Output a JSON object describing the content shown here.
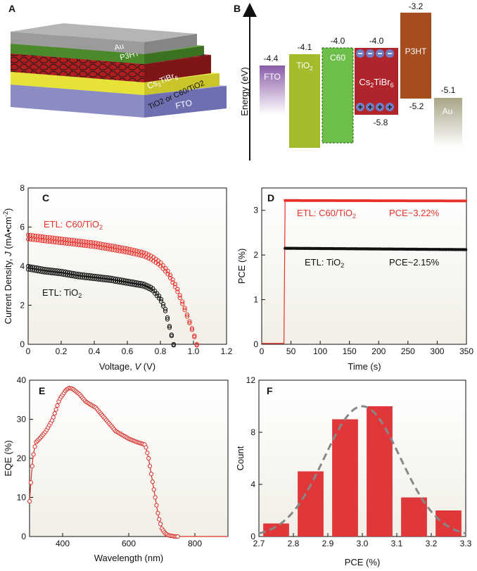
{
  "panels": {
    "A": {
      "label": "A",
      "layers": [
        "Au",
        "P3HT",
        "Cs2TiBr6",
        "TiO2 or C60/TiO2",
        "FTO"
      ]
    },
    "B": {
      "label": "B",
      "ylabel": "Energy (eV)",
      "materials": [
        "FTO",
        "TiO2",
        "C60",
        "Cs2TiBr6",
        "P3HT",
        "Au"
      ],
      "levels": {
        "FTO": "-4.4",
        "TiO2": "-4.1",
        "C60": "-4.0",
        "Cs2TiBr6_cb": "-4.0",
        "Cs2TiBr6_vb": "-5.8",
        "P3HT_lumo": "-3.2",
        "P3HT_homo": "-5.2",
        "Au": "-5.1"
      },
      "colors": {
        "FTO": "#8a5ca8",
        "TiO2": "#a4bb2b",
        "C60": "#6cbf4a",
        "Cs2TiBr6": "#b0242b",
        "P3HT": "#a64d1f",
        "Au": "#a8a486"
      }
    },
    "C": {
      "label": "C"
    },
    "D": {
      "label": "D"
    },
    "E": {
      "label": "E"
    },
    "F": {
      "label": "F"
    }
  },
  "chart_data": [
    {
      "panel": "C",
      "type": "scatter",
      "xlabel": "Voltage, V (V)",
      "ylabel": "Current Density, J (mA•cm⁻²)",
      "xlim": [
        0,
        1.2
      ],
      "ylim": [
        0,
        8
      ],
      "xticks": [
        "0",
        "0.2",
        "0.4",
        "0.6",
        "0.8",
        "1.0",
        "1.2"
      ],
      "yticks": [
        "0",
        "2",
        "4",
        "6",
        "8"
      ],
      "grid": false,
      "annotations": [
        "ETL: C60/TiO2",
        "ETL: TiO2"
      ],
      "series": [
        {
          "name": "ETL: C60/TiO2",
          "color": "#e8302a",
          "x": [
            0,
            0.1,
            0.2,
            0.3,
            0.4,
            0.5,
            0.6,
            0.7,
            0.75,
            0.8,
            0.85,
            0.9,
            0.95,
            1.0,
            1.02
          ],
          "y": [
            5.6,
            5.5,
            5.4,
            5.3,
            5.2,
            5.05,
            4.9,
            4.7,
            4.5,
            4.2,
            3.7,
            2.9,
            1.8,
            0.6,
            0
          ]
        },
        {
          "name": "ETL: TiO2",
          "color": "#111111",
          "x": [
            0,
            0.1,
            0.2,
            0.3,
            0.4,
            0.5,
            0.6,
            0.7,
            0.75,
            0.8,
            0.83,
            0.85,
            0.87,
            0.88
          ],
          "y": [
            4.0,
            3.85,
            3.75,
            3.6,
            3.5,
            3.4,
            3.25,
            3.1,
            2.9,
            2.4,
            1.8,
            1.1,
            0.4,
            0
          ]
        }
      ]
    },
    {
      "panel": "D",
      "type": "line",
      "xlabel": "Time (s)",
      "ylabel": "PCE (%)",
      "xlim": [
        0,
        350
      ],
      "ylim": [
        0,
        3.5
      ],
      "xticks": [
        "0",
        "50",
        "100",
        "150",
        "200",
        "250",
        "300",
        "350"
      ],
      "yticks": [
        "0",
        "1",
        "2",
        "3"
      ],
      "grid": false,
      "annotations": [
        "ETL: C60/TiO2",
        "PCE~3.22%",
        "ETL: TiO2",
        "PCE~2.15%"
      ],
      "series": [
        {
          "name": "ETL: C60/TiO2",
          "color": "#e8302a",
          "x": [
            0,
            38,
            40,
            350
          ],
          "y": [
            0.02,
            0.02,
            3.22,
            3.21
          ]
        },
        {
          "name": "ETL: TiO2",
          "color": "#111111",
          "x": [
            40,
            350
          ],
          "y": [
            2.15,
            2.12
          ]
        }
      ]
    },
    {
      "panel": "E",
      "type": "line",
      "xlabel": "Wavelength (nm)",
      "ylabel": "EQE (%)",
      "xlim": [
        300,
        900
      ],
      "ylim": [
        0,
        40
      ],
      "xticks": [
        "400",
        "600",
        "800"
      ],
      "yticks": [
        "0",
        "10",
        "20",
        "30",
        "40"
      ],
      "grid": false,
      "series": [
        {
          "color": "#d8302a",
          "x": [
            300,
            305,
            310,
            318,
            330,
            350,
            370,
            390,
            410,
            420,
            430,
            450,
            470,
            500,
            530,
            560,
            600,
            630,
            650,
            660,
            670,
            680,
            690,
            700,
            710,
            720,
            740,
            780,
            850,
            900
          ],
          "y": [
            9,
            15,
            20,
            24,
            25,
            27,
            30,
            35,
            37.5,
            38,
            37.8,
            36.5,
            34.5,
            33,
            30,
            27,
            25,
            24,
            23.5,
            20,
            15,
            10,
            5,
            2,
            0.8,
            0.3,
            0,
            0,
            0,
            0
          ]
        }
      ]
    },
    {
      "panel": "F",
      "type": "bar",
      "xlabel": "PCE (%)",
      "ylabel": "Count",
      "xlim": [
        2.7,
        3.3
      ],
      "ylim": [
        0,
        12
      ],
      "xticks": [
        "2.7",
        "2.8",
        "2.9",
        "3.0",
        "3.1",
        "3.2",
        "3.3"
      ],
      "yticks": [
        "0",
        "4",
        "8",
        "12"
      ],
      "grid": false,
      "bar_color": "#e0383a",
      "categories": [
        2.75,
        2.85,
        2.95,
        3.05,
        3.15,
        3.25
      ],
      "values": [
        1,
        5,
        9,
        10,
        3,
        2
      ],
      "fit": {
        "type": "gaussian",
        "mean": 3.0,
        "sigma": 0.11,
        "amplitude": 10,
        "color": "#888888",
        "dashed": true
      }
    }
  ]
}
